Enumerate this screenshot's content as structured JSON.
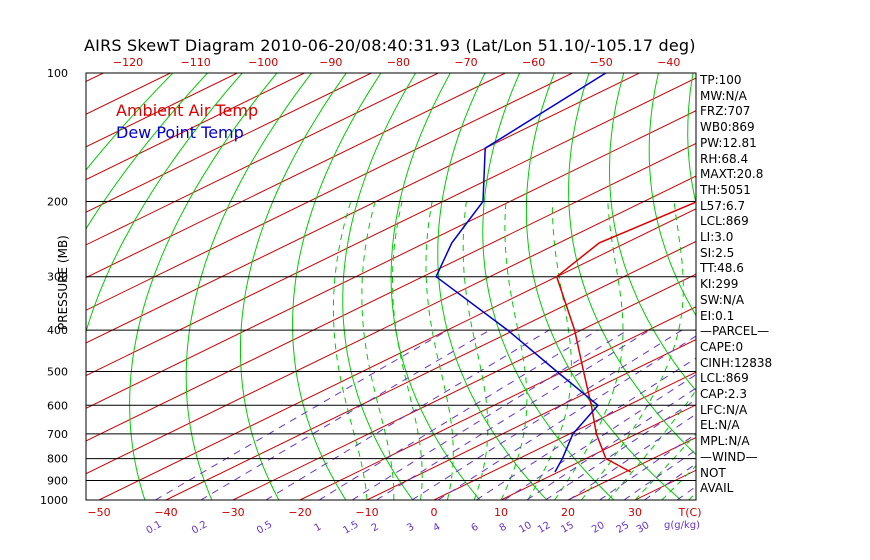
{
  "title": "AIRS SkewT Diagram 2010-06-20/08:40:31.93 (Lat/Lon 51.10/-105.17 deg)",
  "legend": {
    "air": "Ambient Air Temp",
    "dew": "Dew Point Temp"
  },
  "stats": [
    "TP:100",
    "MW:N/A",
    "FRZ:707",
    "WB0:869",
    "PW:12.81",
    "RH:68.4",
    "MAXT:20.8",
    "TH:5051",
    "L57:6.7",
    "LCL:869",
    "LI:3.0",
    "SI:2.5",
    "TT:48.6",
    "KI:299",
    "SW:N/A",
    "EI:0.1",
    "—PARCEL—",
    "CAPE:0",
    "CINH:12838",
    "LCL:869",
    "CAP:2.3",
    "LFC:N/A",
    "EL:N/A",
    "MPL:N/A",
    "—WIND—",
    " NOT",
    " AVAIL"
  ],
  "colors": {
    "air": "#dd0000",
    "dew": "#0000cc",
    "isotherm": "#cc0000",
    "dry_adiabat": "#00cc00",
    "moist_adiabat": "#00cc00",
    "mixing_ratio": "#6633cc",
    "tick_labels_top": "#cc0000",
    "tick_labels_bottom": "#cc0000",
    "mixing_labels": "#6633cc"
  },
  "chart_data": {
    "type": "line",
    "ylabel": "PRESSURE (MB)",
    "x_unit_label": "T(C)",
    "mixing_unit_label": "g(g/kg)",
    "y_scale": "log",
    "ylim": [
      1000,
      100
    ],
    "xlim_bottom_c": [
      -50,
      40
    ],
    "pressure_ticks": [
      100,
      200,
      300,
      400,
      500,
      600,
      700,
      800,
      900,
      1000
    ],
    "bottom_ticks_c": [
      -50,
      -40,
      -30,
      -20,
      -10,
      0,
      10,
      20,
      30
    ],
    "bottom_tick_labels": [
      "−50",
      "−40",
      "−30",
      "−20",
      "−10",
      "0",
      "10",
      "20",
      "30"
    ],
    "top_ticks_c": [
      -120,
      -110,
      -100,
      -90,
      -80,
      -70,
      -60,
      -50,
      -40
    ],
    "top_tick_labels": [
      "−120",
      "−110",
      "−100",
      "−90",
      "−80",
      "−70",
      "−60",
      "−50",
      "−40"
    ],
    "mixing_ratios": [
      "0.1",
      "0.2",
      "0.5",
      "1",
      "1.5",
      "2",
      "3",
      "4",
      "6",
      "8",
      "10",
      "12",
      "15",
      "20",
      "25",
      "30",
      "40"
    ],
    "series": [
      {
        "name": "Ambient Air Temp",
        "pressure": [
          860,
          800,
          700,
          600,
          500,
          400,
          300,
          250,
          200,
          150,
          100
        ],
        "temp_c": [
          20.8,
          13.0,
          4.0,
          -5.5,
          -17.0,
          -31.0,
          -50.0,
          -54.0,
          -52.0,
          -53.0,
          -50.0
        ]
      },
      {
        "name": "Dew Point Temp",
        "pressure": [
          860,
          800,
          700,
          600,
          500,
          400,
          300,
          250,
          200,
          150,
          100
        ],
        "temp_c": [
          9.5,
          6.5,
          0.5,
          -4.5,
          -21.0,
          -41.0,
          -68.0,
          -76.0,
          -84.0,
          -100.0,
          -105.0
        ]
      }
    ]
  }
}
